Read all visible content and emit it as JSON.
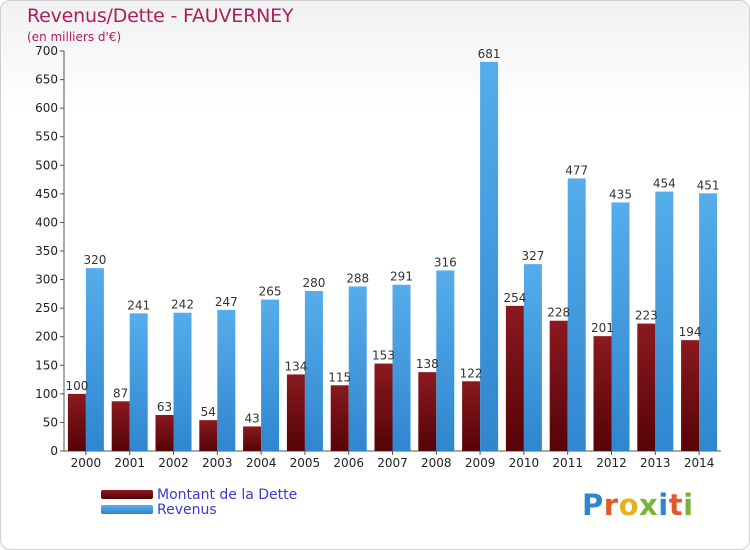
{
  "title": "Revenus/Dette - FAUVERNEY",
  "subtitle": "(en milliers d'€)",
  "colors": {
    "title": "#b01c5e",
    "dette": "#7a0e12",
    "revenus": "#4aa3e6",
    "legend_text": "#3a3ad0"
  },
  "legend": {
    "dette": "Montant de la Dette",
    "revenus": "Revenus"
  },
  "logo": {
    "text": "Proxiti"
  },
  "chart_data": {
    "type": "bar",
    "categories": [
      "2000",
      "2001",
      "2002",
      "2003",
      "2004",
      "2005",
      "2006",
      "2007",
      "2008",
      "2009",
      "2010",
      "2011",
      "2012",
      "2013",
      "2014"
    ],
    "series": [
      {
        "name": "Montant de la Dette",
        "values": [
          100,
          87,
          63,
          54,
          43,
          134,
          115,
          153,
          138,
          122,
          254,
          228,
          201,
          223,
          194
        ]
      },
      {
        "name": "Revenus",
        "values": [
          320,
          241,
          242,
          247,
          265,
          280,
          288,
          291,
          316,
          681,
          327,
          477,
          435,
          454,
          451
        ]
      }
    ],
    "ylim": [
      0,
      700
    ],
    "yticks": [
      0,
      50,
      100,
      150,
      200,
      250,
      300,
      350,
      400,
      450,
      500,
      550,
      600,
      650,
      700
    ],
    "grid": false,
    "legend_position": "bottom-left"
  }
}
